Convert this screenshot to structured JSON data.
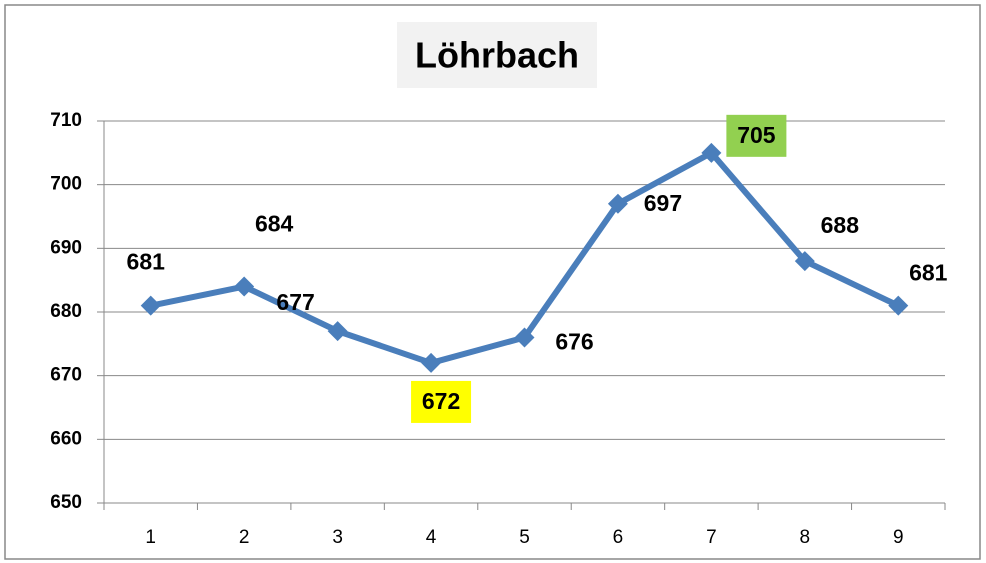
{
  "chart_data": {
    "type": "line",
    "title": "Löhrbach",
    "categories": [
      "1",
      "2",
      "3",
      "4",
      "5",
      "6",
      "7",
      "8",
      "9"
    ],
    "series": [
      {
        "color": "#4a7ebb",
        "values": [
          681,
          684,
          677,
          672,
          676,
          697,
          705,
          688,
          681
        ]
      }
    ],
    "label_backgrounds": [
      null,
      null,
      null,
      "#ffff00",
      null,
      null,
      "#92d050",
      null,
      null
    ],
    "ylim": [
      650,
      710
    ],
    "yticks": [
      650,
      660,
      670,
      680,
      690,
      700,
      710
    ],
    "grid": true
  }
}
